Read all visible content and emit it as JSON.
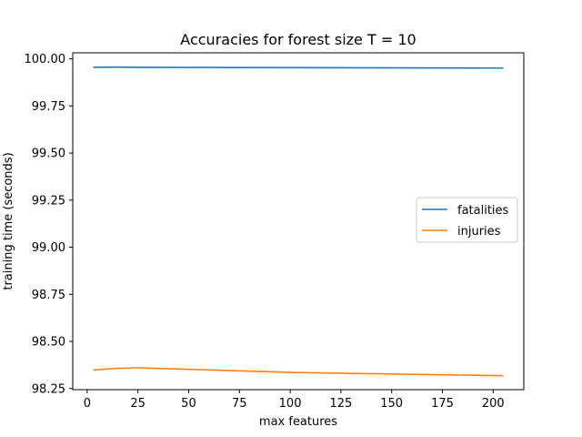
{
  "chart_data": {
    "type": "line",
    "title": "Accuracies for forest size T = 10",
    "xlabel": "max features",
    "ylabel": "training time (seconds)",
    "xlim": [
      -7.1,
      215.1
    ],
    "ylim": [
      98.244,
      100.032
    ],
    "xticks": [
      0,
      25,
      50,
      75,
      100,
      125,
      150,
      175,
      200
    ],
    "xtick_labels": [
      "0",
      "25",
      "50",
      "75",
      "100",
      "125",
      "150",
      "175",
      "200"
    ],
    "yticks": [
      98.25,
      98.5,
      98.75,
      99.0,
      99.25,
      99.5,
      99.75,
      100.0
    ],
    "ytick_labels": [
      "98.25",
      "98.50",
      "98.75",
      "99.00",
      "99.25",
      "99.50",
      "99.75",
      "100.00"
    ],
    "grid": false,
    "legend_position": "center-right",
    "series": [
      {
        "name": "fatalities",
        "color": "#1f77b4",
        "x": [
          3,
          14,
          25,
          103,
          205
        ],
        "y": [
          99.955,
          99.956,
          99.955,
          99.953,
          99.951
        ]
      },
      {
        "name": "injuries",
        "color": "#ff7f0e",
        "x": [
          3,
          14,
          25,
          103,
          205
        ],
        "y": [
          98.348,
          98.357,
          98.36,
          98.335,
          98.318
        ]
      }
    ]
  }
}
